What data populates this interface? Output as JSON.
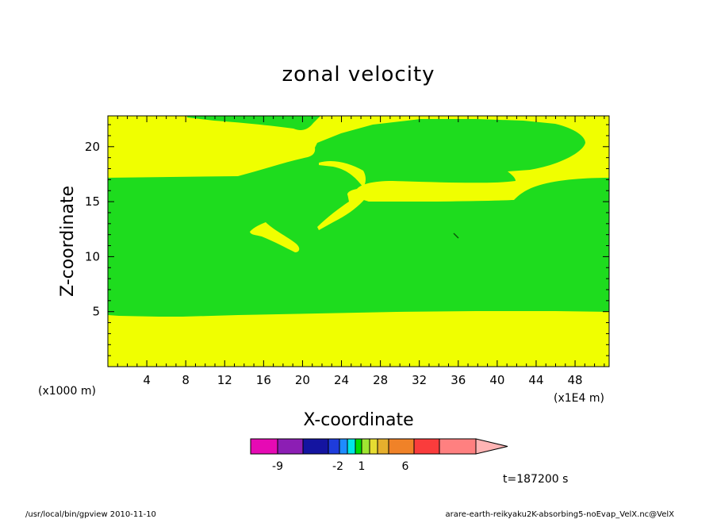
{
  "chart_data": {
    "type": "heatmap",
    "title": "zonal velocity",
    "xlabel": "X-coordinate",
    "ylabel": "Z-coordinate",
    "x_unit": "(x1E4 m)",
    "y_unit": "(x1000 m)",
    "xlim": [
      0,
      51.5
    ],
    "ylim": [
      0,
      22.8
    ],
    "x_ticks": [
      4,
      8,
      12,
      16,
      20,
      24,
      28,
      32,
      36,
      40,
      44,
      48
    ],
    "y_ticks": [
      5,
      10,
      15,
      20
    ],
    "colorbar": {
      "colors": [
        "#e60ab4",
        "#8c1eb4",
        "#1414a0",
        "#1e3cdc",
        "#1e8cff",
        "#00e6e6",
        "#00dc00",
        "#a0e632",
        "#e6dc32",
        "#e6af2d",
        "#f08228",
        "#fa3c3c",
        "#ff8080",
        "#ffb4b4"
      ],
      "labels": [
        "-9",
        "-2",
        "1",
        "6"
      ]
    },
    "regions": [
      {
        "name": "yellow",
        "color": "#f0ff00"
      },
      {
        "name": "green",
        "color": "#1edc1e"
      }
    ],
    "time_label": "t=187200 s"
  },
  "footer": {
    "left": "/usr/local/bin/gpview  2010-11-10",
    "right": "arare-earth-reikyaku2K-absorbing5-noEvap_VelX.nc@VelX"
  }
}
